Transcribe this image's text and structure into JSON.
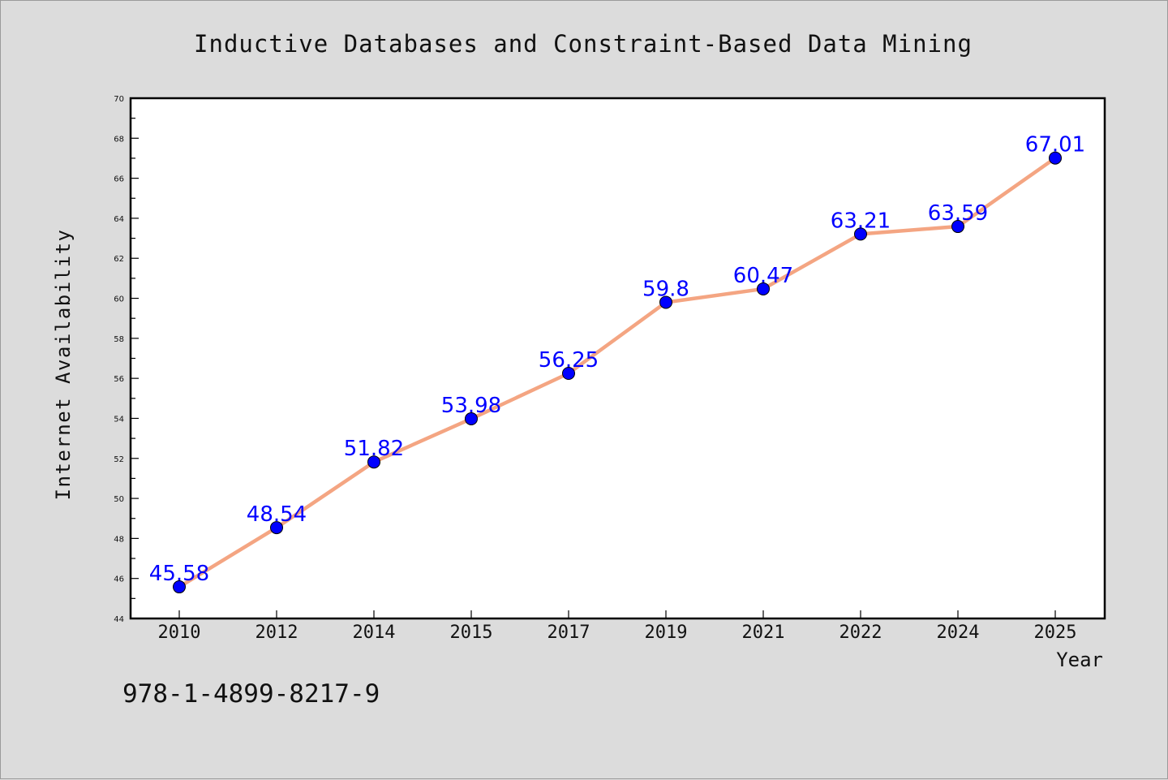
{
  "chart_data": {
    "type": "line",
    "title": "Inductive Databases and Constraint-Based Data Mining",
    "xlabel": "Year",
    "ylabel": "Internet Availability",
    "categories": [
      "2010",
      "2012",
      "2014",
      "2015",
      "2017",
      "2019",
      "2021",
      "2022",
      "2024",
      "2025"
    ],
    "series": [
      {
        "values": [
          45.58,
          48.54,
          51.82,
          53.98,
          56.25,
          59.8,
          60.47,
          63.21,
          63.59,
          67.01
        ]
      }
    ],
    "data_labels": [
      "45.58",
      "48.54",
      "51.82",
      "53.98",
      "56.25",
      "59.8",
      "60.47",
      "63.21",
      "63.59",
      "67.01"
    ],
    "ylim": [
      44,
      70
    ],
    "ytick_step": 2,
    "yticks": [
      "44",
      "46",
      "48",
      "50",
      "52",
      "54",
      "56",
      "58",
      "60",
      "62",
      "64",
      "66",
      "68",
      "70"
    ],
    "grid": false,
    "legend": "none",
    "line_color": "#f4a582",
    "marker_color": "#0000ff",
    "label_color": "#0000ff"
  },
  "footer": {
    "isbn": "978-1-4899-8217-9"
  }
}
